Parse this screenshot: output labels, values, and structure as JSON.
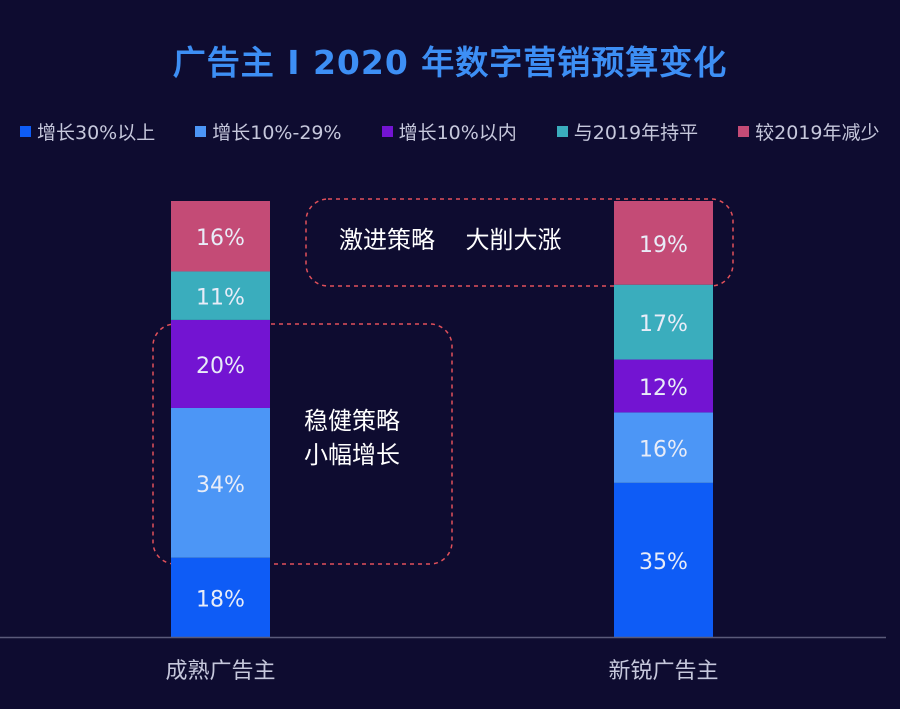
{
  "chart_data": {
    "type": "stacked-bar",
    "title": "广告主 I 2020 年数字营销预算变化",
    "categories": [
      "成熟广告主",
      "新锐广告主"
    ],
    "series": [
      {
        "name": "增长30%以上",
        "color": "#0e5cf6",
        "values": [
          18,
          35
        ]
      },
      {
        "name": "增长10%-29%",
        "color": "#4c96f6",
        "values": [
          34,
          16
        ]
      },
      {
        "name": "增长10%以内",
        "color": "#7314d2",
        "values": [
          20,
          12
        ]
      },
      {
        "name": "与2019年持平",
        "color": "#3aadbd",
        "values": [
          11,
          17
        ]
      },
      {
        "name": "较2019年减少",
        "color": "#c44b76",
        "values": [
          16,
          19
        ]
      }
    ],
    "value_suffix": "%",
    "legend_position": "top",
    "annotations": [
      {
        "text": "激进策略    大削大涨",
        "target": "新锐广告主"
      },
      {
        "text_lines": [
          "稳健策略",
          "小幅增长"
        ],
        "target": "成熟广告主"
      }
    ]
  },
  "colors": {
    "background": "#0e0c30",
    "title": "#3d8ff5",
    "axis": "#5a5a7a",
    "label": "#c6c8dc",
    "annotation_border": "#e0505a"
  }
}
